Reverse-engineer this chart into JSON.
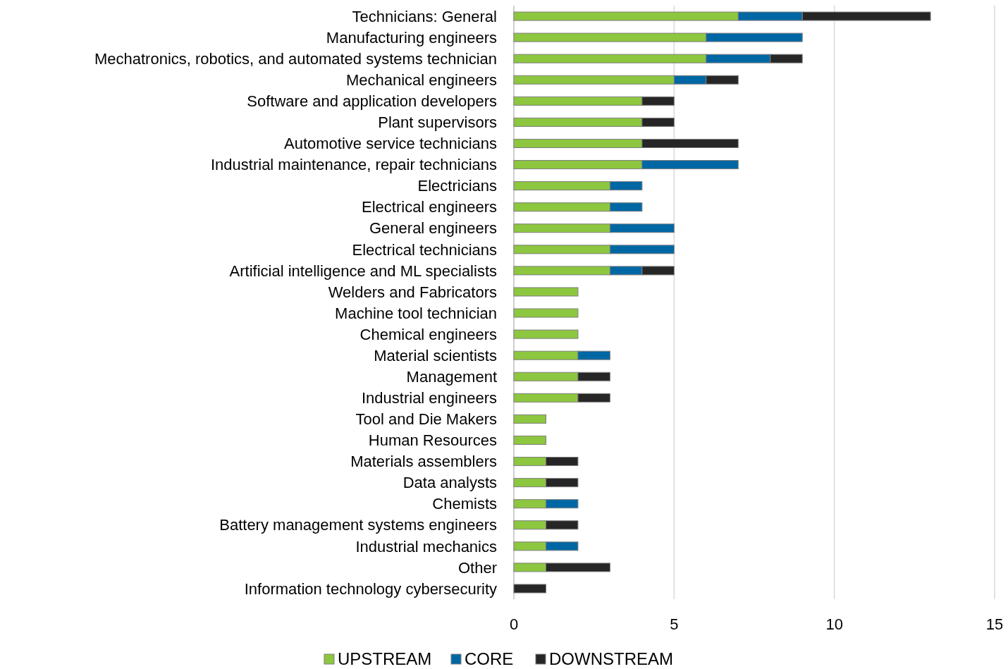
{
  "chart_data": {
    "type": "bar",
    "orientation": "horizontal",
    "stacked": true,
    "categories": [
      "Technicians: General",
      "Manufacturing engineers",
      "Mechatronics, robotics, and automated systems technician",
      "Mechanical engineers",
      "Software and application developers",
      "Plant supervisors",
      "Automotive service technicians",
      "Industrial maintenance, repair technicians",
      "Electricians",
      "Electrical engineers",
      "General engineers",
      "Electrical technicians",
      "Artificial intelligence and ML specialists",
      "Welders and Fabricators",
      "Machine tool technician",
      "Chemical engineers",
      "Material scientists",
      "Management",
      "Industrial engineers",
      "Tool and Die Makers",
      "Human Resources",
      "Materials assemblers",
      "Data analysts",
      "Chemists",
      "Battery management systems engineers",
      "Industrial mechanics",
      "Other",
      "Information technology cybersecurity"
    ],
    "series": [
      {
        "name": "UPSTREAM",
        "color": "#8dc63f",
        "values": [
          7,
          6,
          6,
          5,
          4,
          4,
          4,
          4,
          3,
          3,
          3,
          3,
          3,
          2,
          2,
          2,
          2,
          2,
          2,
          1,
          1,
          1,
          1,
          1,
          1,
          1,
          1,
          0
        ]
      },
      {
        "name": "CORE",
        "color": "#0067a5",
        "values": [
          2,
          3,
          2,
          1,
          0,
          0,
          0,
          3,
          1,
          1,
          2,
          2,
          1,
          0,
          0,
          0,
          1,
          0,
          0,
          0,
          0,
          0,
          0,
          1,
          0,
          1,
          0,
          0
        ]
      },
      {
        "name": "DOWNSTREAM",
        "color": "#262626",
        "values": [
          4,
          0,
          1,
          1,
          1,
          1,
          3,
          0,
          0,
          0,
          0,
          0,
          1,
          0,
          0,
          0,
          0,
          1,
          1,
          0,
          0,
          1,
          1,
          0,
          1,
          0,
          2,
          1
        ]
      }
    ],
    "xlim": [
      0,
      15
    ],
    "xticks": [
      0,
      5,
      10,
      15
    ],
    "grid": "x",
    "legend": "bottom"
  }
}
